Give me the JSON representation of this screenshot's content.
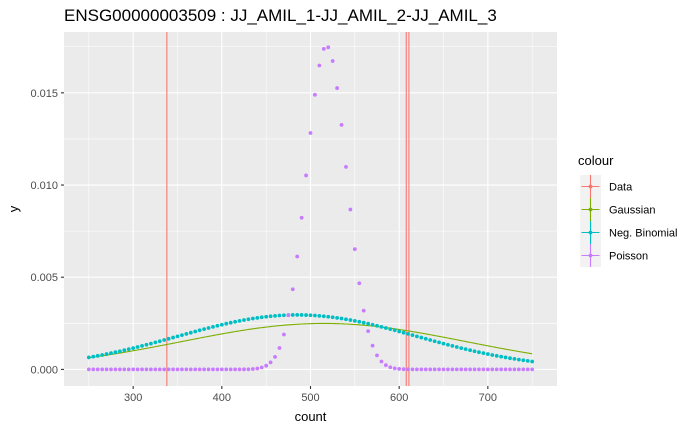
{
  "chart_data": {
    "type": "scatter",
    "title": "ENSG00000003509  :  JJ_AMIL_1-JJ_AMIL_2-JJ_AMIL_3",
    "xlabel": "count",
    "ylabel": "y",
    "xlim": [
      222,
      778
    ],
    "ylim": [
      -0.0009,
      0.0183
    ],
    "x_ticks": [
      300,
      400,
      500,
      600,
      700
    ],
    "y_ticks": [
      0.0,
      0.005,
      0.01,
      0.015
    ],
    "y_tick_labels": [
      "0.000",
      "0.005",
      "0.010",
      "0.015"
    ],
    "legend": {
      "title": "colour",
      "position": "right",
      "entries": [
        "Data",
        "Gaussian",
        "Neg. Binomial",
        "Poisson"
      ]
    },
    "colors": {
      "Data": "#F8766D",
      "Gaussian": "#7CAE00",
      "Neg. Binomial": "#00BFC4",
      "Poisson": "#C77CFF",
      "panel_background": "#EBEBEB",
      "grid": "#FFFFFF"
    },
    "grid": true,
    "data_lines_x": [
      338,
      608,
      611
    ],
    "series": [
      {
        "name": "Gaussian",
        "style": "line",
        "mean": 515,
        "sd": 160,
        "x_range": [
          250,
          750
        ]
      },
      {
        "name": "Neg. Binomial",
        "style": "points",
        "mean": 485,
        "sd": 135,
        "x_range": [
          250,
          750
        ],
        "x_step": 5
      },
      {
        "name": "Poisson",
        "style": "points",
        "mean": 518,
        "sd": 22.75,
        "x_range": [
          250,
          750
        ],
        "x_step": 5
      }
    ]
  }
}
